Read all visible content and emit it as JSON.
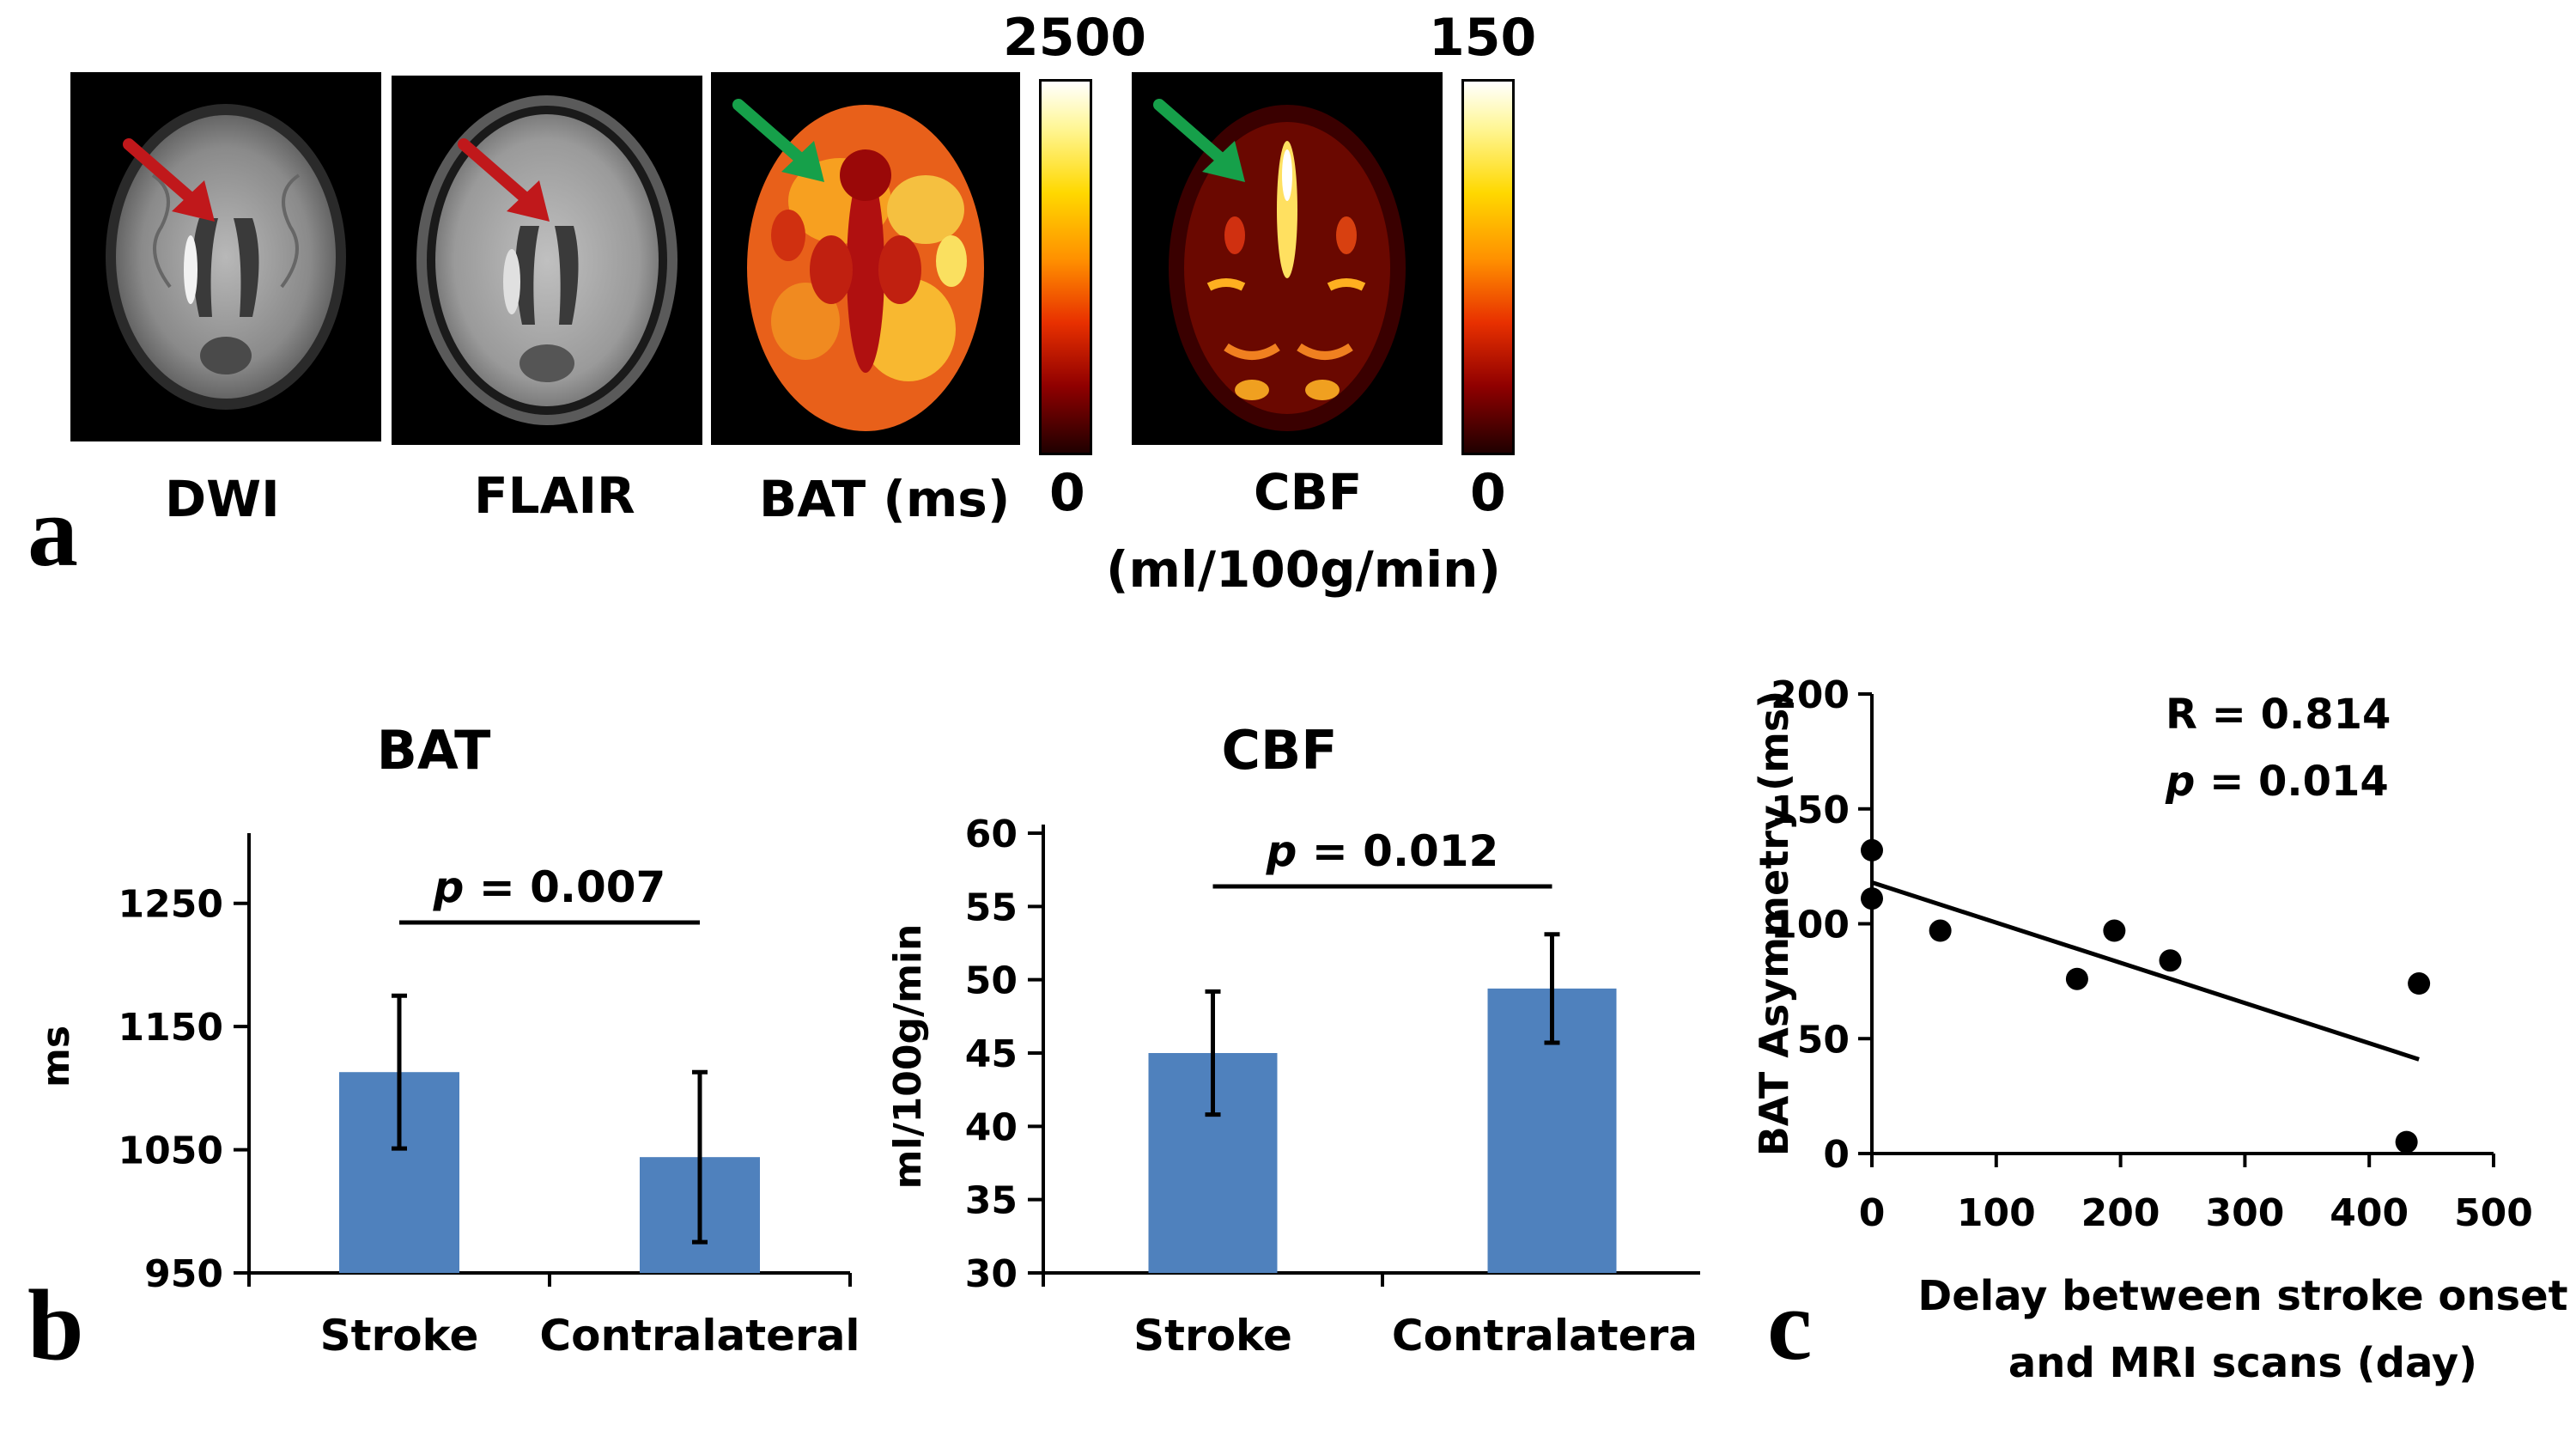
{
  "panel_a": {
    "letter": "a",
    "images": [
      {
        "label": "DWI",
        "arrow_color": "#c0181b"
      },
      {
        "label": "FLAIR",
        "arrow_color": "#c0181b"
      },
      {
        "label": "BAT (ms)",
        "arrow_color": "#16a04a"
      },
      {
        "label_line1": "CBF",
        "label_line2": "(ml/100g/min)",
        "arrow_color": "#16a04a"
      }
    ],
    "bat_scale": {
      "max": "2500",
      "min": "0"
    },
    "cbf_scale": {
      "max": "150",
      "min": "0"
    }
  },
  "panel_b": {
    "letter": "b"
  },
  "panel_c": {
    "letter": "c"
  },
  "chart_data": [
    {
      "id": "bat_bar",
      "type": "bar",
      "title": "BAT",
      "ylabel": "ms",
      "xlabel": "",
      "categories": [
        "Stroke",
        "Contralateral"
      ],
      "values": [
        1113,
        1044
      ],
      "errors": [
        62,
        69
      ],
      "ylim": [
        950,
        1300
      ],
      "yticks": [
        950,
        1050,
        1150,
        1250
      ],
      "ytick_labels": [
        "950",
        "1050",
        "1150",
        "1250"
      ],
      "annotation": {
        "p_label": "p",
        "p_value": " = 0.007"
      },
      "bar_color": "#4f81bd"
    },
    {
      "id": "cbf_bar",
      "type": "bar",
      "title": "CBF",
      "ylabel": "ml/100g/min",
      "xlabel": "",
      "categories": [
        "Stroke",
        "Contralateral"
      ],
      "values": [
        45,
        49.4
      ],
      "errors": [
        4.2,
        3.7
      ],
      "ylim": [
        30,
        60
      ],
      "yticks": [
        30,
        35,
        40,
        45,
        50,
        55,
        60
      ],
      "ytick_labels": [
        "30",
        "35",
        "40",
        "45",
        "50",
        "55",
        "60"
      ],
      "annotation": {
        "p_label": "p",
        "p_value": " = 0.012"
      },
      "bar_color": "#4f81bd"
    },
    {
      "id": "scatter_c",
      "type": "scatter",
      "title": "",
      "xlabel_line1": "Delay between stroke onset",
      "xlabel_line2": "and MRI scans (day)",
      "ylabel": "BAT Asymmetry (ms)",
      "x": [
        0,
        0,
        55,
        165,
        195,
        240,
        430,
        440
      ],
      "y": [
        132,
        111,
        97,
        76,
        97,
        84,
        5,
        74
      ],
      "xlim": [
        0,
        500
      ],
      "ylim": [
        0,
        200
      ],
      "xticks": [
        0,
        100,
        200,
        300,
        400,
        500
      ],
      "xtick_labels": [
        "0",
        "100",
        "200",
        "300",
        "400",
        "500"
      ],
      "yticks": [
        0,
        50,
        100,
        150,
        200
      ],
      "ytick_labels": [
        "0",
        "50",
        "100",
        "150",
        "200"
      ],
      "fit_line": {
        "x": [
          0,
          440
        ],
        "y": [
          118,
          41
        ]
      },
      "stats": {
        "r_label": "R = 0.814",
        "p_label": "p",
        "p_value": " = 0.014"
      }
    }
  ]
}
